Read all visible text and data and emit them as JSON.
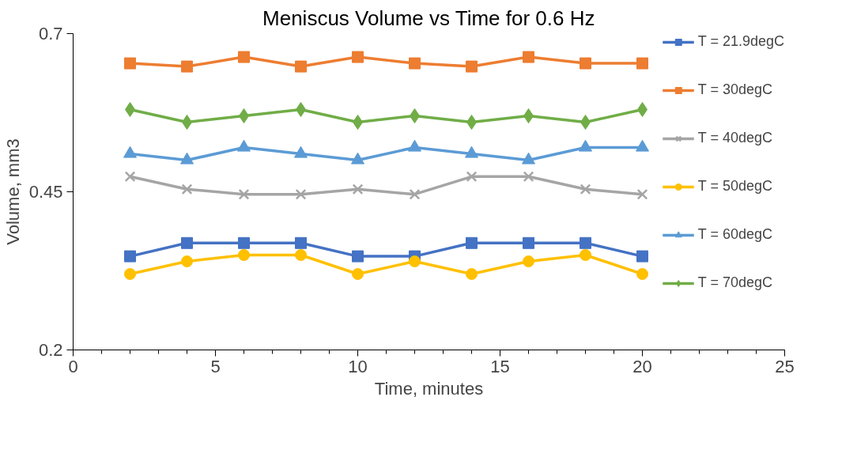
{
  "chart_data": {
    "type": "line",
    "title": "Meniscus Volume vs Time for 0.6 Hz",
    "xlabel": "Time, minutes",
    "ylabel": "Volume, mm3",
    "x": [
      2,
      4,
      6,
      8,
      10,
      12,
      14,
      16,
      18,
      20
    ],
    "xlim": [
      0,
      25
    ],
    "xticks": [
      0,
      5,
      10,
      15,
      20,
      25
    ],
    "ylim": [
      0.2,
      0.7
    ],
    "yticks": [
      0.2,
      0.45,
      0.7
    ],
    "grid": false,
    "legend": "right",
    "line_style": "solid",
    "series": [
      {
        "name": "T = 21.9degC",
        "color": "#4472c4",
        "marker": "square",
        "values": [
          0.348,
          0.369,
          0.369,
          0.369,
          0.348,
          0.348,
          0.369,
          0.369,
          0.369,
          0.348
        ]
      },
      {
        "name": "T = 30degC",
        "color": "#ed7d31",
        "marker": "square",
        "values": [
          0.653,
          0.648,
          0.663,
          0.648,
          0.663,
          0.653,
          0.648,
          0.663,
          0.653,
          0.653
        ]
      },
      {
        "name": "T = 40degC",
        "color": "#a5a5a5",
        "marker": "cross",
        "values": [
          0.474,
          0.454,
          0.446,
          0.446,
          0.454,
          0.446,
          0.474,
          0.474,
          0.454,
          0.446
        ]
      },
      {
        "name": "T = 50degC",
        "color": "#ffc000",
        "marker": "circle",
        "values": [
          0.32,
          0.34,
          0.35,
          0.35,
          0.32,
          0.34,
          0.32,
          0.34,
          0.35,
          0.32
        ]
      },
      {
        "name": "T = 60degC",
        "color": "#5b9bd5",
        "marker": "triangle",
        "values": [
          0.51,
          0.5,
          0.52,
          0.51,
          0.5,
          0.52,
          0.51,
          0.5,
          0.52,
          0.52
        ]
      },
      {
        "name": "T = 70degC",
        "color": "#70ad47",
        "marker": "diamond",
        "values": [
          0.58,
          0.56,
          0.57,
          0.58,
          0.56,
          0.57,
          0.56,
          0.57,
          0.56,
          0.58
        ]
      }
    ]
  }
}
